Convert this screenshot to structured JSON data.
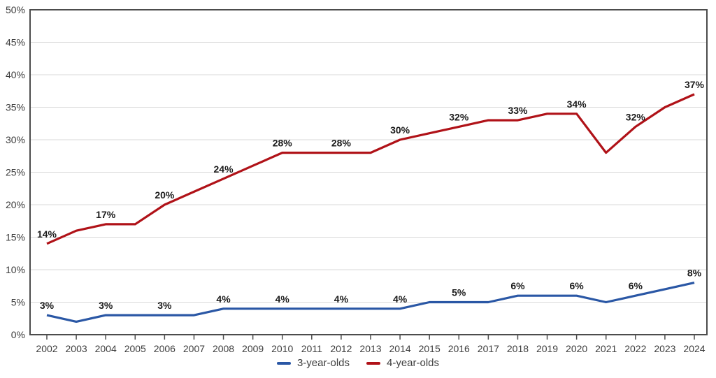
{
  "chart_data": {
    "type": "line",
    "title": "",
    "x": [
      "2002",
      "2003",
      "2004",
      "2005",
      "2006",
      "2007",
      "2008",
      "2009",
      "2010",
      "2011",
      "2012",
      "2013",
      "2014",
      "2015",
      "2016",
      "2017",
      "2018",
      "2019",
      "2020",
      "2021",
      "2022",
      "2023",
      "2024"
    ],
    "ylim": [
      0,
      50
    ],
    "ytick_step": 5,
    "ytick_suffix": "%",
    "grid": true,
    "legend_position": "bottom",
    "colors": {
      "grid": "#d9d9d9",
      "border": "#4c4c4c",
      "axis_text": "#3d3d3d",
      "label_text": "#1c1c1c"
    },
    "series": [
      {
        "name": "3-year-olds",
        "color": "#2a57a5",
        "values": [
          3,
          2,
          3,
          3,
          3,
          3,
          4,
          4,
          4,
          4,
          4,
          4,
          4,
          5,
          5,
          5,
          6,
          6,
          6,
          5,
          6,
          7,
          8
        ],
        "point_labels": [
          "3%",
          "",
          "3%",
          "",
          "3%",
          "",
          "4%",
          "",
          "4%",
          "",
          "4%",
          "",
          "4%",
          "",
          "5%",
          "",
          "6%",
          "",
          "6%",
          "",
          "6%",
          "",
          "8%"
        ]
      },
      {
        "name": "4-year-olds",
        "color": "#b01218",
        "values": [
          14,
          16,
          17,
          17,
          20,
          22,
          24,
          26,
          28,
          28,
          28,
          28,
          30,
          31,
          32,
          33,
          33,
          34,
          34,
          28,
          32,
          35,
          37
        ],
        "point_labels": [
          "14%",
          "",
          "17%",
          "",
          "20%",
          "",
          "24%",
          "",
          "28%",
          "",
          "28%",
          "",
          "30%",
          "",
          "32%",
          "",
          "33%",
          "",
          "34%",
          "",
          "32%",
          "",
          "37%"
        ]
      }
    ]
  }
}
